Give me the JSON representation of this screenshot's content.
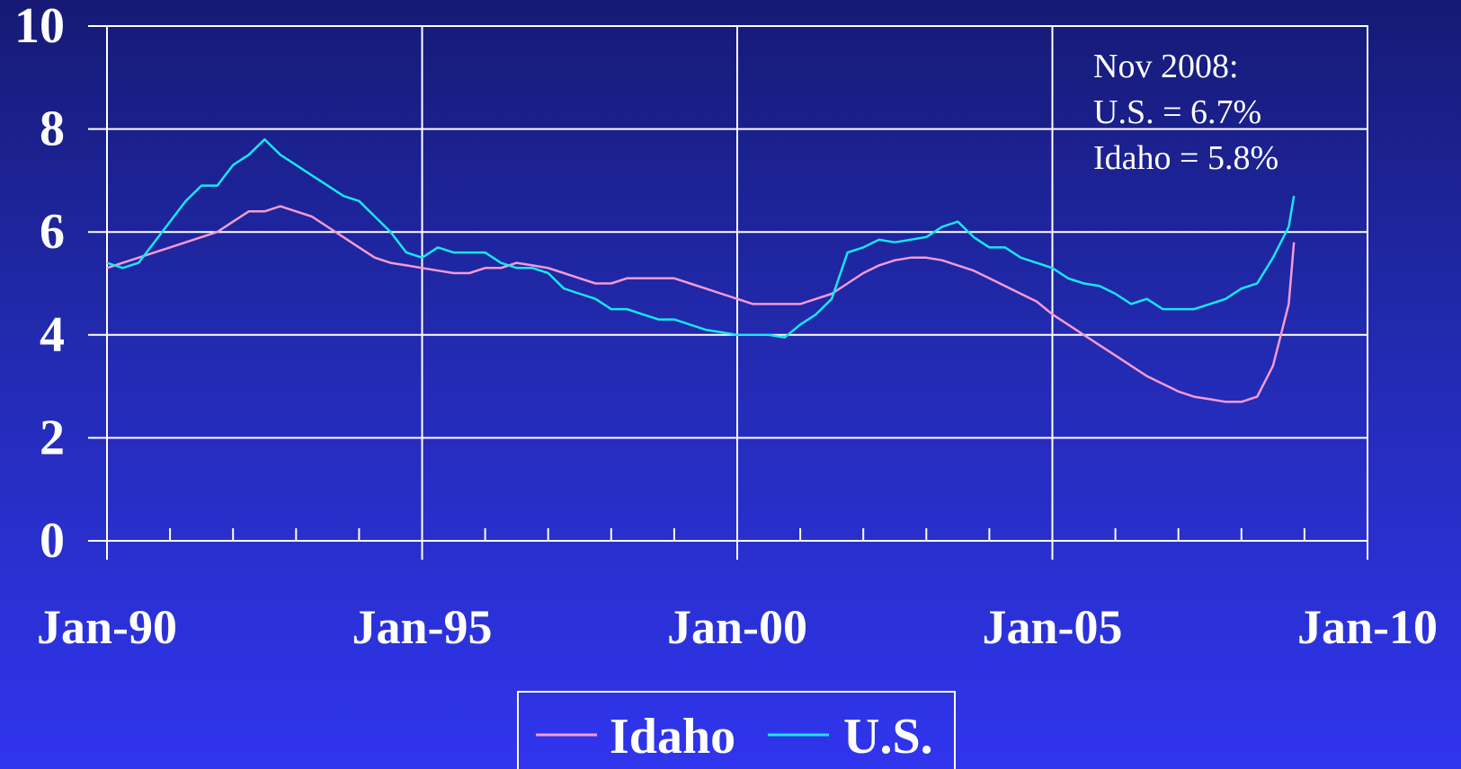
{
  "colors": {
    "background_top": "#161a75",
    "background_bottom": "#3035ee",
    "grid": "#ffffff",
    "idaho": "#f49ad6",
    "us": "#19e6f0"
  },
  "chart_data": {
    "type": "line",
    "y_ticks": [
      "0",
      "2",
      "4",
      "6",
      "8",
      "10"
    ],
    "ylim": [
      0,
      10
    ],
    "x_ticks": [
      "Jan-90",
      "Jan-95",
      "Jan-00",
      "Jan-05",
      "Jan-10"
    ],
    "x_start": "Jan-90",
    "x_end": "Jan-10",
    "grid": true,
    "legend_position": "bottom",
    "annotation": [
      "Nov 2008:",
      "U.S. = 6.7%",
      "Idaho = 5.8%"
    ],
    "x": [
      "Jan-90",
      "Apr-90",
      "Jul-90",
      "Oct-90",
      "Jan-91",
      "Apr-91",
      "Jul-91",
      "Oct-91",
      "Jan-92",
      "Apr-92",
      "Jul-92",
      "Oct-92",
      "Jan-93",
      "Apr-93",
      "Jul-93",
      "Oct-93",
      "Jan-94",
      "Apr-94",
      "Jul-94",
      "Oct-94",
      "Jan-95",
      "Apr-95",
      "Jul-95",
      "Oct-95",
      "Jan-96",
      "Apr-96",
      "Jul-96",
      "Oct-96",
      "Jan-97",
      "Apr-97",
      "Jul-97",
      "Oct-97",
      "Jan-98",
      "Apr-98",
      "Jul-98",
      "Oct-98",
      "Jan-99",
      "Apr-99",
      "Jul-99",
      "Oct-99",
      "Jan-00",
      "Apr-00",
      "Jul-00",
      "Oct-00",
      "Jan-01",
      "Apr-01",
      "Jul-01",
      "Oct-01",
      "Jan-02",
      "Apr-02",
      "Jul-02",
      "Oct-02",
      "Jan-03",
      "Apr-03",
      "Jul-03",
      "Oct-03",
      "Jan-04",
      "Apr-04",
      "Jul-04",
      "Oct-04",
      "Jan-05",
      "Apr-05",
      "Jul-05",
      "Oct-05",
      "Jan-06",
      "Apr-06",
      "Jul-06",
      "Oct-06",
      "Jan-07",
      "Apr-07",
      "Jul-07",
      "Oct-07",
      "Jan-08",
      "Apr-08",
      "Jul-08",
      "Oct-08",
      "Nov-08"
    ],
    "series": [
      {
        "name": "Idaho",
        "values": [
          5.3,
          5.4,
          5.5,
          5.6,
          5.7,
          5.8,
          5.9,
          6.0,
          6.2,
          6.4,
          6.4,
          6.5,
          6.4,
          6.3,
          6.1,
          5.9,
          5.7,
          5.5,
          5.4,
          5.35,
          5.3,
          5.25,
          5.2,
          5.2,
          5.3,
          5.3,
          5.4,
          5.35,
          5.3,
          5.2,
          5.1,
          5.0,
          5.0,
          5.1,
          5.1,
          5.1,
          5.1,
          5.0,
          4.9,
          4.8,
          4.7,
          4.6,
          4.6,
          4.6,
          4.6,
          4.7,
          4.8,
          5.0,
          5.2,
          5.35,
          5.45,
          5.5,
          5.5,
          5.45,
          5.35,
          5.25,
          5.1,
          4.95,
          4.8,
          4.65,
          4.4,
          4.2,
          4.0,
          3.8,
          3.6,
          3.4,
          3.2,
          3.05,
          2.9,
          2.8,
          2.75,
          2.7,
          2.7,
          2.8,
          3.4,
          4.6,
          5.8
        ]
      },
      {
        "name": "U.S.",
        "values": [
          5.4,
          5.3,
          5.4,
          5.8,
          6.2,
          6.6,
          6.9,
          6.9,
          7.3,
          7.5,
          7.8,
          7.5,
          7.3,
          7.1,
          6.9,
          6.7,
          6.6,
          6.3,
          6.0,
          5.6,
          5.5,
          5.7,
          5.6,
          5.6,
          5.6,
          5.4,
          5.3,
          5.3,
          5.2,
          4.9,
          4.8,
          4.7,
          4.5,
          4.5,
          4.4,
          4.3,
          4.3,
          4.2,
          4.1,
          4.05,
          4.0,
          4.0,
          4.0,
          3.95,
          4.2,
          4.4,
          4.7,
          5.6,
          5.7,
          5.85,
          5.8,
          5.85,
          5.9,
          6.1,
          6.2,
          5.9,
          5.7,
          5.7,
          5.5,
          5.4,
          5.3,
          5.1,
          5.0,
          4.95,
          4.8,
          4.6,
          4.7,
          4.5,
          4.5,
          4.5,
          4.6,
          4.7,
          4.9,
          5.0,
          5.5,
          6.1,
          6.7
        ]
      }
    ]
  }
}
